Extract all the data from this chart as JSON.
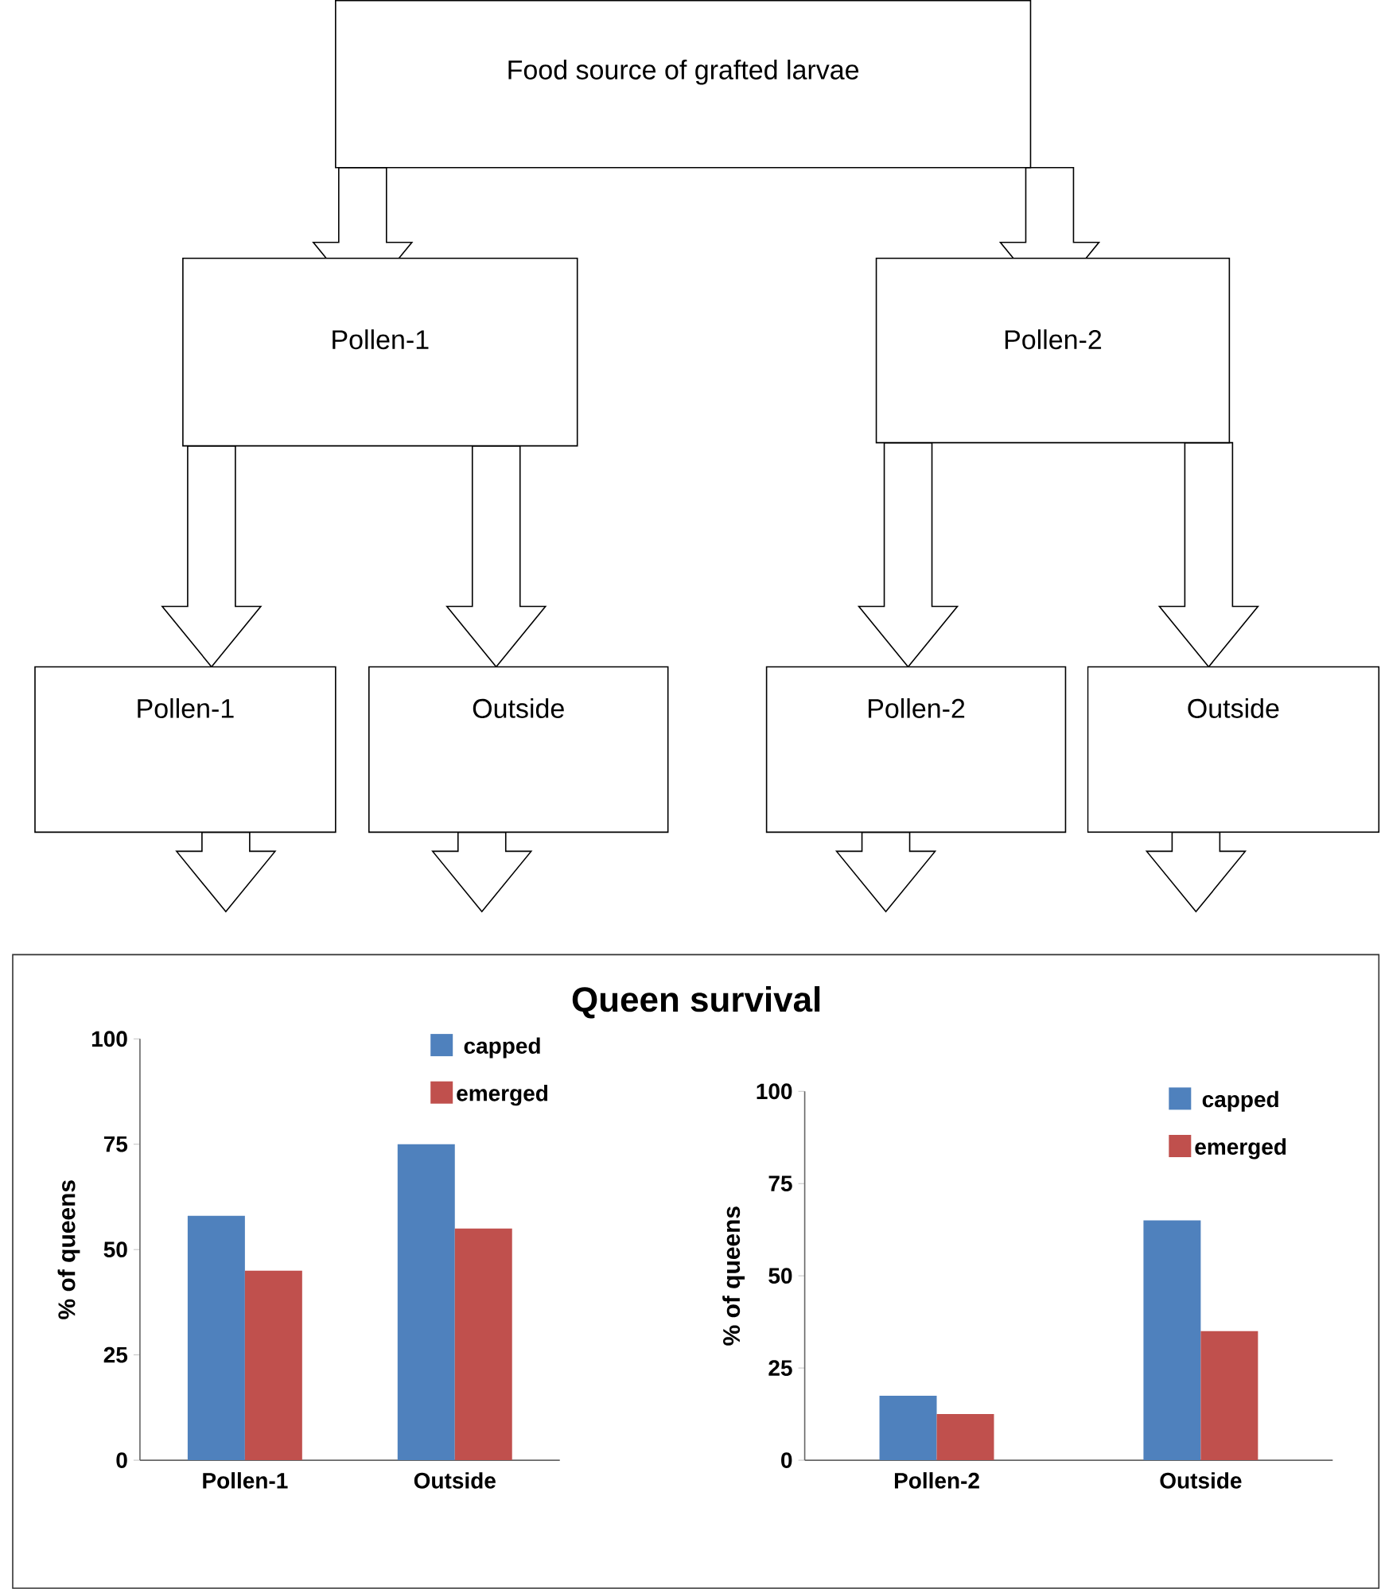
{
  "chart_data": [
    {
      "type": "other",
      "annotations": [
        "Food source of grafted larvae",
        "Pollen-1",
        "Pollen-2",
        "Pollen-1",
        "Outside",
        "Pollen-2",
        "Outside"
      ]
    },
    {
      "type": "bar",
      "title": "Queen survival",
      "ylabel": "% of queens",
      "categories": [
        "Pollen-1",
        "Outside"
      ],
      "ylim": [
        0,
        100
      ],
      "yticks": [
        0,
        25,
        50,
        75,
        100
      ],
      "legend": "top right",
      "series": [
        {
          "name": "capped",
          "color": "#4f81bd",
          "values": [
            58,
            75
          ]
        },
        {
          "name": "emerged",
          "color": "#c0504d",
          "values": [
            45,
            55
          ]
        }
      ]
    },
    {
      "type": "bar",
      "ylabel": "% of queens",
      "categories": [
        "Pollen-2",
        "Outside"
      ],
      "ylim": [
        0,
        100
      ],
      "yticks": [
        0,
        25,
        50,
        75,
        100
      ],
      "legend": "top right",
      "series": [
        {
          "name": "capped",
          "color": "#4f81bd",
          "values": [
            17.5,
            65
          ]
        },
        {
          "name": "emerged",
          "color": "#c0504d",
          "values": [
            12.5,
            35
          ]
        }
      ]
    }
  ]
}
